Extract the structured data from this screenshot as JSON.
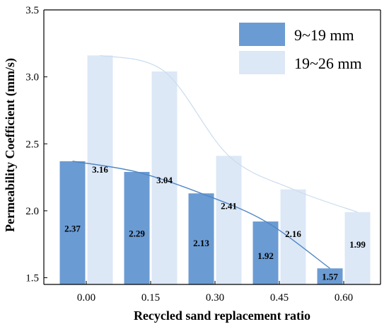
{
  "chart_data": {
    "type": "bar",
    "title": "",
    "xlabel": "Recycled sand replacement ratio",
    "ylabel": "Permeability Coefficient (mm/s)",
    "categories": [
      "0.00",
      "0.15",
      "0.30",
      "0.45",
      "0.60"
    ],
    "ylim": [
      1.45,
      3.5
    ],
    "yticks": [
      "1.5",
      "2.0",
      "2.5",
      "3.0",
      "3.5"
    ],
    "grid": false,
    "legend_position": "top-right",
    "series": [
      {
        "name": "9~19 mm",
        "values": [
          2.37,
          2.29,
          2.13,
          1.92,
          1.57
        ],
        "labels": [
          "2.37",
          "2.29",
          "2.13",
          "1.92",
          "1.57"
        ],
        "color": "#6b9bd3",
        "line_color": "#4f86c6"
      },
      {
        "name": "19~26 mm",
        "values": [
          3.16,
          3.04,
          2.41,
          2.16,
          1.99
        ],
        "labels": [
          "3.16",
          "3.04",
          "2.41",
          "2.16",
          "1.99"
        ],
        "color": "#dce8f6",
        "line_color": "#c9dcef"
      }
    ]
  }
}
